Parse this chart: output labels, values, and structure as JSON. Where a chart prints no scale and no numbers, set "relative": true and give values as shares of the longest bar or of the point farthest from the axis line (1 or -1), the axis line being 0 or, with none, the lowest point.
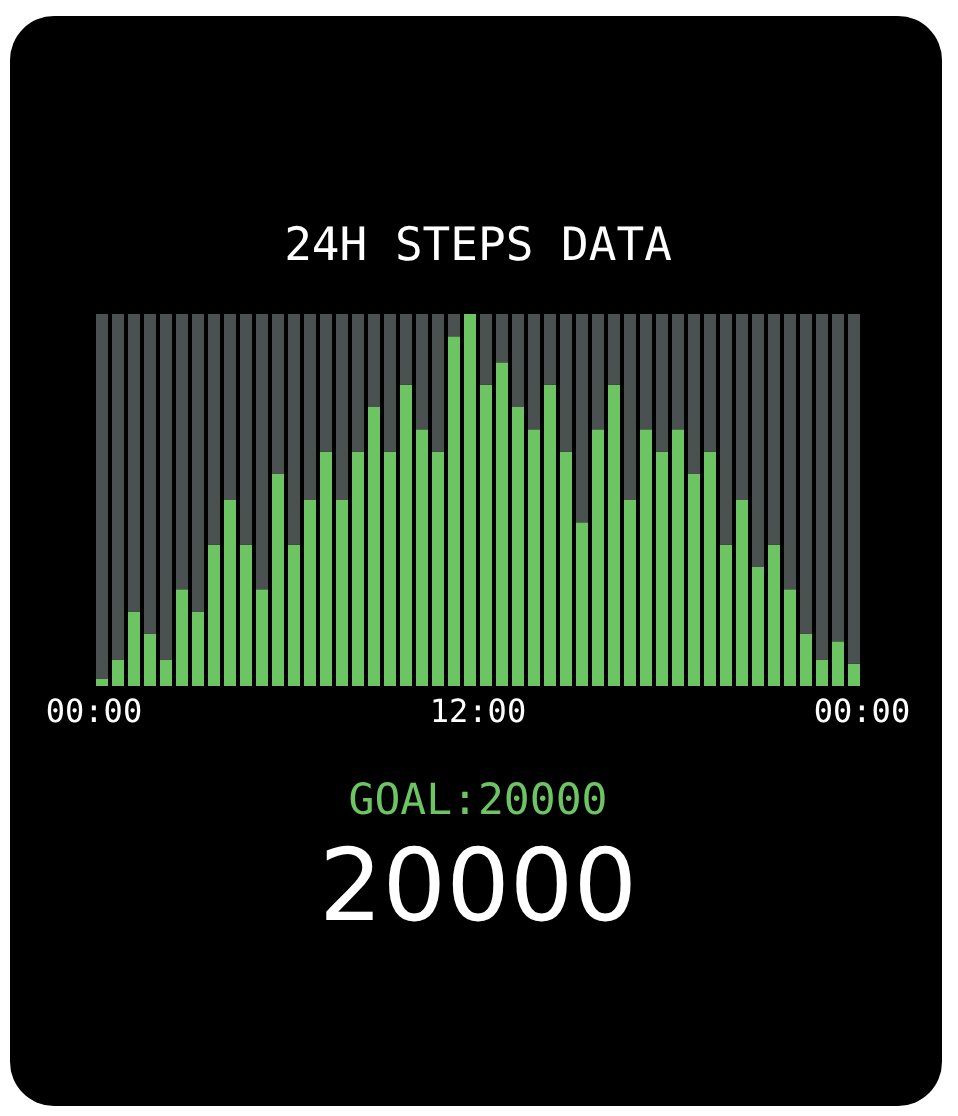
{
  "chart_data": {
    "type": "bar",
    "title": "24H STEPS DATA",
    "x": [
      0.25,
      0.75,
      1.25,
      1.75,
      2.25,
      2.75,
      3.25,
      3.75,
      4.25,
      4.75,
      5.25,
      5.75,
      6.25,
      6.75,
      7.25,
      7.75,
      8.25,
      8.75,
      9.25,
      9.75,
      10.25,
      10.75,
      11.25,
      11.75,
      12.25,
      12.75,
      13.25,
      13.75,
      14.25,
      14.75,
      15.25,
      15.75,
      16.25,
      16.75,
      17.25,
      17.75,
      18.25,
      18.75,
      19.25,
      19.75,
      20.25,
      20.75,
      21.25,
      21.75,
      22.25,
      22.75,
      23.25,
      23.75
    ],
    "stacked": true,
    "relative": true,
    "series": [
      {
        "color": "#6cc463",
        "values": [
          0.02,
          0.07,
          0.2,
          0.14,
          0.07,
          0.26,
          0.2,
          0.38,
          0.5,
          0.38,
          0.26,
          0.57,
          0.38,
          0.5,
          0.63,
          0.5,
          0.63,
          0.75,
          0.63,
          0.81,
          0.69,
          0.63,
          0.94,
          1,
          0.81,
          0.87,
          0.75,
          0.69,
          0.81,
          0.63,
          0.44,
          0.69,
          0.81,
          0.5,
          0.69,
          0.63,
          0.69,
          0.57,
          0.63,
          0.38,
          0.5,
          0.32,
          0.38,
          0.26,
          0.14,
          0.07,
          0.12,
          0.06
        ]
      },
      {
        "color": "#4b5050",
        "values": [
          0.98,
          0.93,
          0.8,
          0.86,
          0.93,
          0.74,
          0.8,
          0.62,
          0.5,
          0.62,
          0.74,
          0.43,
          0.62,
          0.5,
          0.37,
          0.5,
          0.37,
          0.25,
          0.37,
          0.19,
          0.31,
          0.37,
          0.06,
          0,
          0.19,
          0.13,
          0.25,
          0.31,
          0.19,
          0.37,
          0.56,
          0.31,
          0.19,
          0.5,
          0.31,
          0.37,
          0.31,
          0.43,
          0.37,
          0.62,
          0.5,
          0.68,
          0.62,
          0.74,
          0.86,
          0.93,
          0.88,
          0.94
        ]
      }
    ],
    "xlim": [
      0,
      24
    ],
    "xticks": [
      {
        "value": 0,
        "label": "00:00"
      },
      {
        "value": 12,
        "label": "12:00"
      },
      {
        "value": 24,
        "label": "00:00"
      }
    ],
    "tick_labels": "x",
    "annotations": [
      "GOAL:20000",
      "20000"
    ]
  }
}
